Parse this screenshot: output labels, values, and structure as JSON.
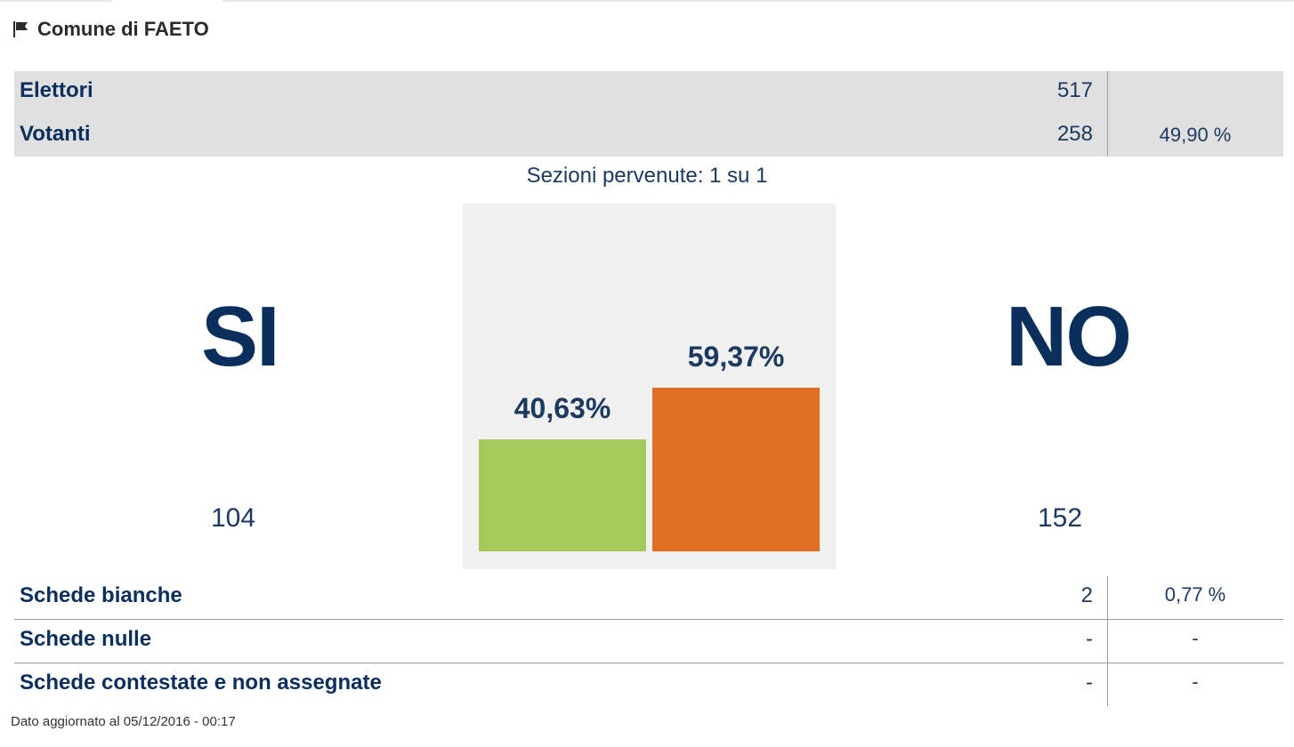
{
  "header": {
    "title": "Comune di FAETO",
    "icon": "flag-icon"
  },
  "stats": {
    "elettori": {
      "label": "Elettori",
      "value": "517"
    },
    "votanti": {
      "label": "Votanti",
      "value": "258",
      "percent": "49,90 %"
    }
  },
  "sezioni": "Sezioni pervenute: 1 su 1",
  "results": {
    "si": {
      "label": "SI",
      "votes": "104"
    },
    "no": {
      "label": "NO",
      "votes": "152"
    }
  },
  "chart_data": {
    "type": "bar",
    "categories": [
      "SI",
      "NO"
    ],
    "values": [
      40.63,
      59.37
    ],
    "value_labels": [
      "40,63%",
      "59,37%"
    ],
    "colors": [
      "#a6c95c",
      "#df6f25"
    ],
    "ylim": [
      0,
      100
    ],
    "grid": false
  },
  "schede": [
    {
      "label": "Schede bianche",
      "value": "2",
      "percent": "0,77 %"
    },
    {
      "label": "Schede nulle",
      "value": "-",
      "percent": "-"
    },
    {
      "label": "Schede contestate e non assegnate",
      "value": "-",
      "percent": "-"
    }
  ],
  "footer": {
    "updated": "Dato aggiornato al 05/12/2016 - 00:17"
  }
}
